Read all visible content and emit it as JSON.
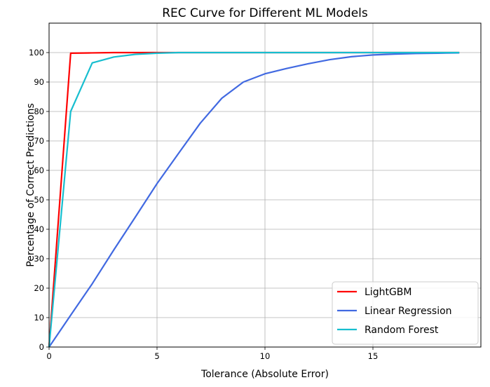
{
  "chart_data": {
    "type": "line",
    "title": "REC Curve for Different ML Models",
    "xlabel": "Tolerance (Absolute Error)",
    "ylabel": "Percentage of Correct Predictions",
    "xlim": [
      0,
      20
    ],
    "ylim": [
      0,
      110
    ],
    "xticks": [
      0,
      5,
      10,
      15
    ],
    "yticks": [
      0,
      10,
      20,
      30,
      40,
      50,
      60,
      70,
      80,
      90,
      100
    ],
    "grid": true,
    "legend_position": "bottom-right",
    "x": [
      0,
      1,
      2,
      3,
      4,
      5,
      6,
      7,
      8,
      9,
      10,
      11,
      12,
      13,
      14,
      15,
      16,
      17,
      18,
      19
    ],
    "series": [
      {
        "name": "LightGBM",
        "color": "#ff0000",
        "values": [
          0,
          99.8,
          99.9,
          100,
          100,
          100,
          100,
          100,
          100,
          100,
          100,
          100,
          100,
          100,
          100,
          100,
          100,
          100,
          100,
          100
        ]
      },
      {
        "name": "Linear Regression",
        "color": "#4169e1",
        "values": [
          0,
          10.8,
          21.5,
          33,
          44.2,
          55.5,
          65.8,
          76,
          84.5,
          90,
          92.8,
          94.6,
          96.2,
          97.6,
          98.6,
          99.2,
          99.5,
          99.7,
          99.8,
          99.9
        ]
      },
      {
        "name": "Random Forest",
        "color": "#17becf",
        "values": [
          0,
          80,
          96.5,
          98.5,
          99.4,
          99.8,
          100,
          100,
          100,
          100,
          100,
          100,
          100,
          100,
          100,
          100,
          100,
          100,
          100,
          100
        ]
      }
    ]
  }
}
